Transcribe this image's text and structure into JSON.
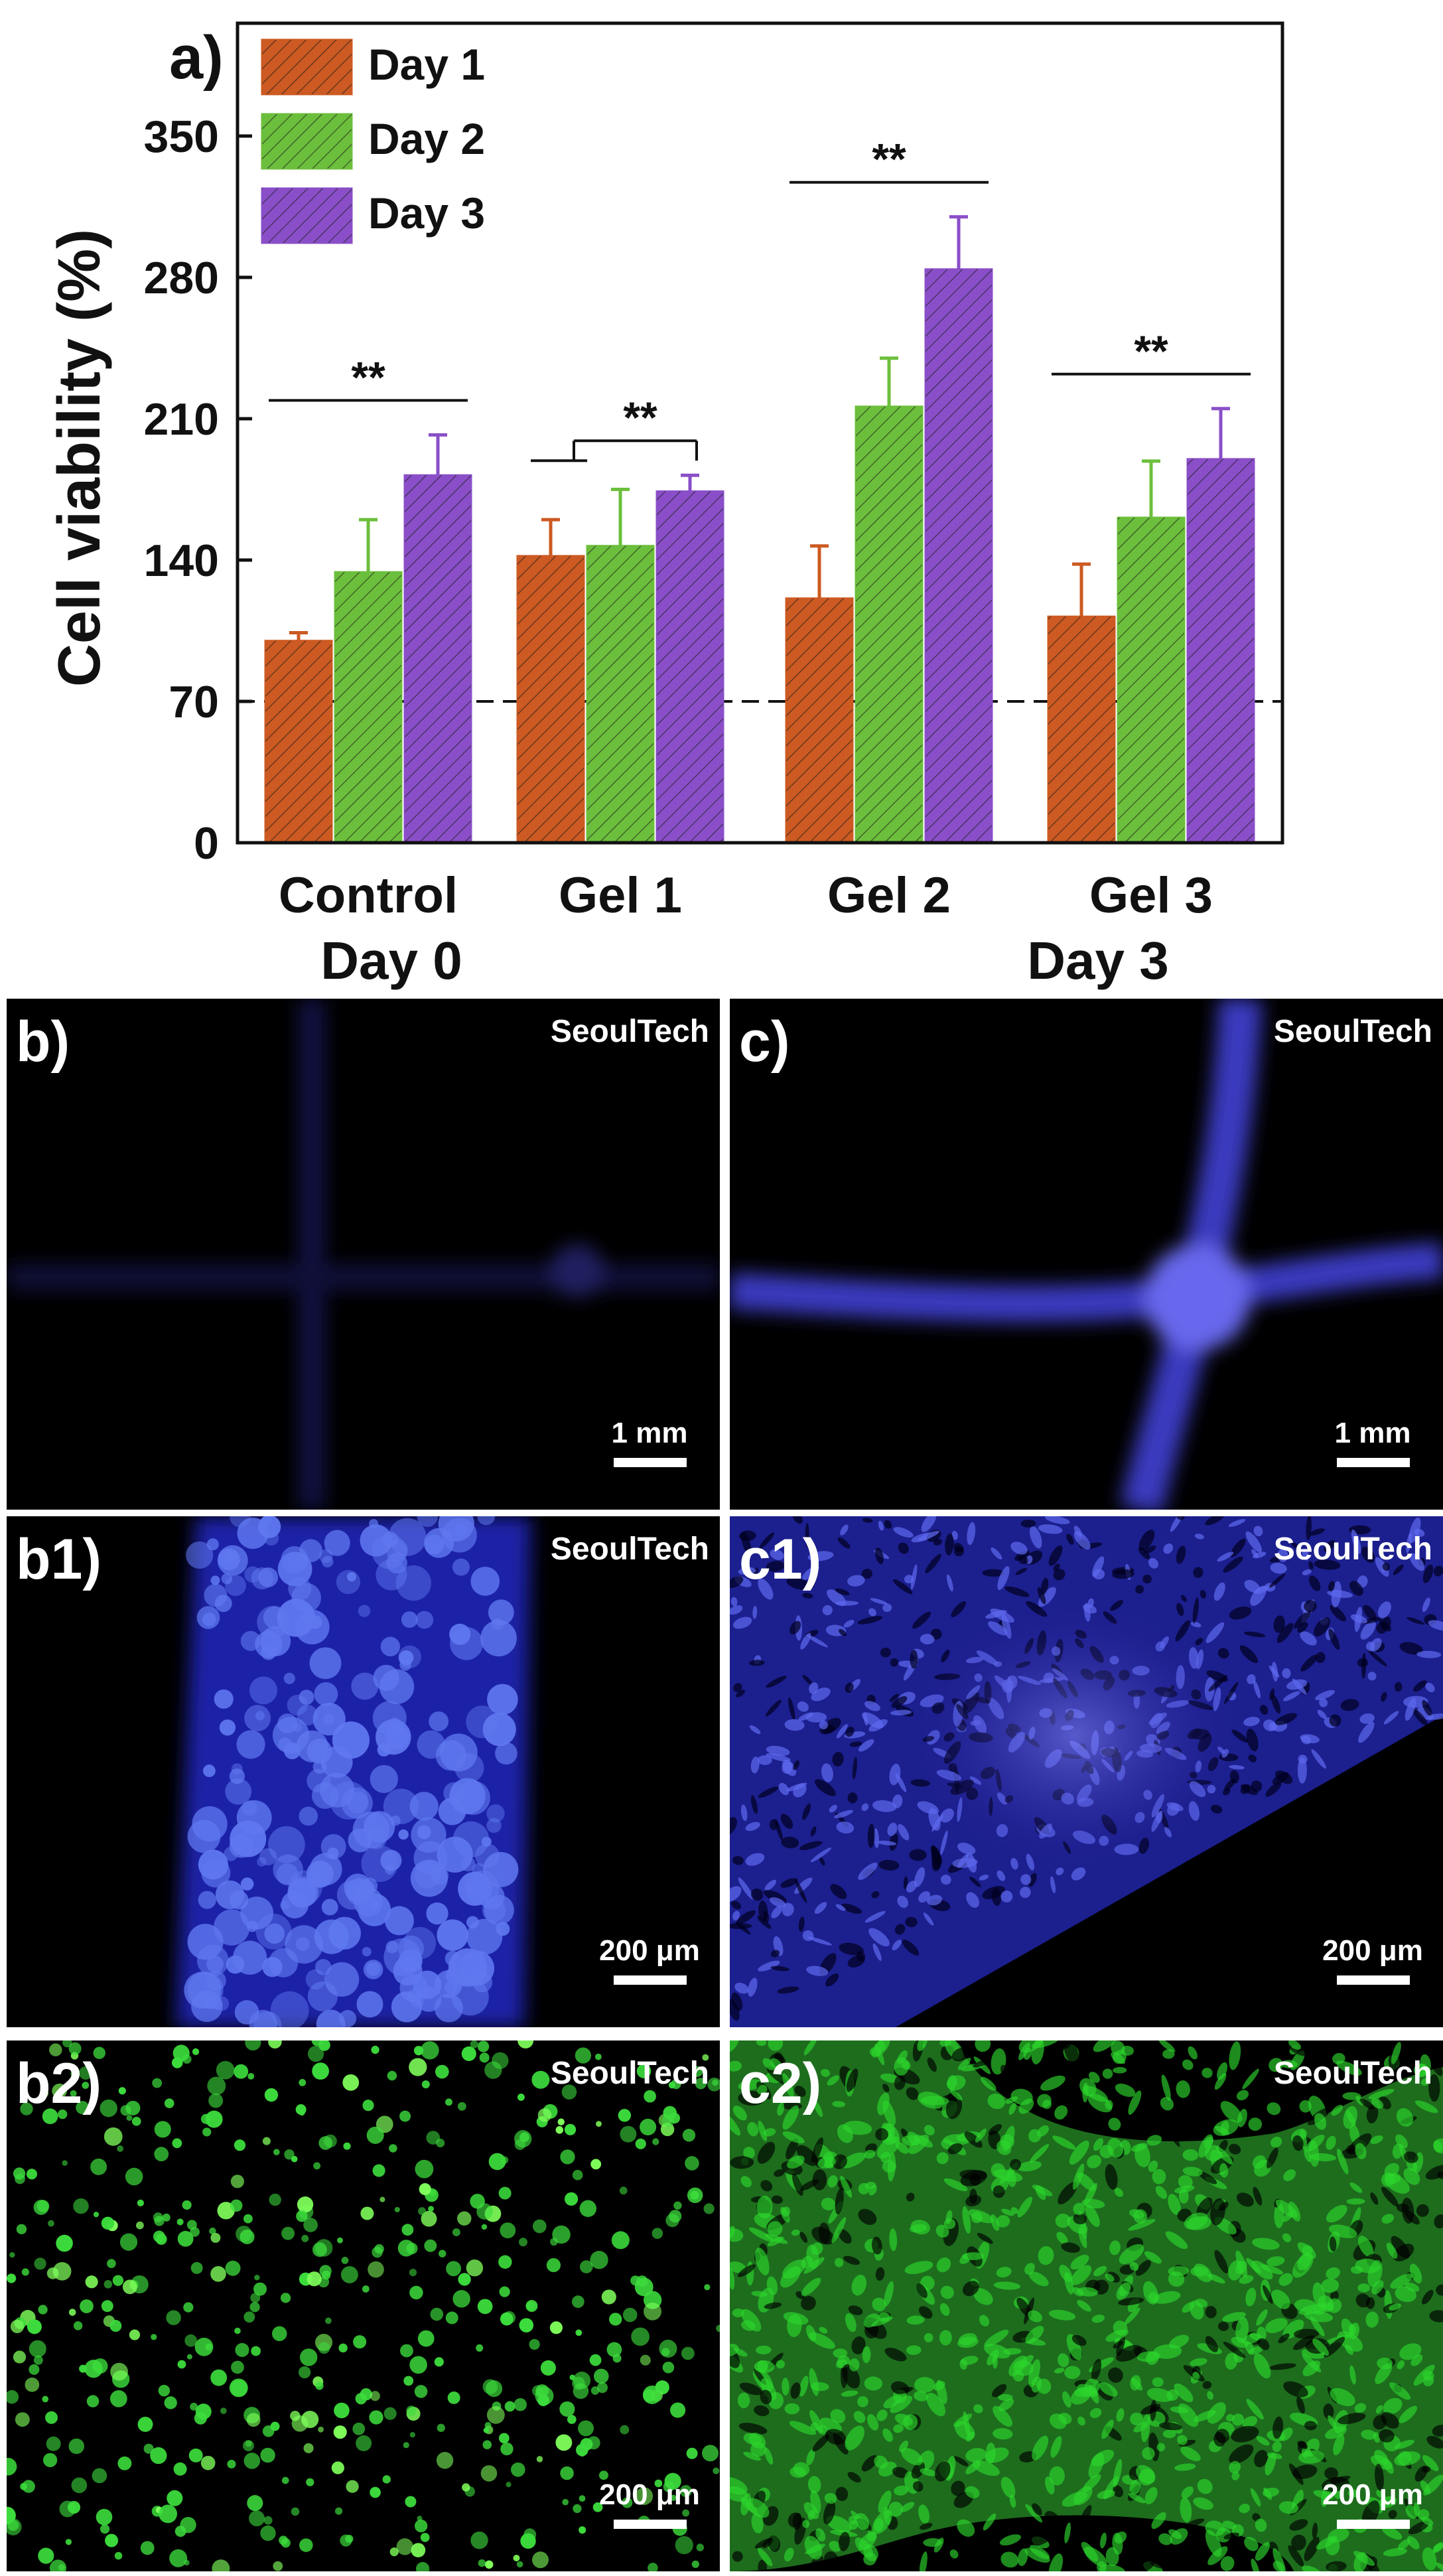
{
  "chart_data": {
    "type": "bar",
    "panel_label": "a)",
    "ylabel": "Cell viability (%)",
    "ylim": [
      0,
      350
    ],
    "yticks": [
      0,
      70,
      140,
      210,
      280,
      350
    ],
    "reference_line": 70,
    "categories": [
      "Control",
      "Gel 1",
      "Gel  2",
      "Gel 3"
    ],
    "series": [
      {
        "name": "Day 1",
        "color": "#cc5a22",
        "values": [
          100,
          142,
          121,
          112
        ],
        "errors": [
          4,
          18,
          26,
          26
        ]
      },
      {
        "name": "Day 2",
        "color": "#6cbf3c",
        "values": [
          134,
          147,
          216,
          161
        ],
        "errors": [
          26,
          28,
          24,
          28
        ]
      },
      {
        "name": "Day 3",
        "color": "#8a4fc8",
        "values": [
          182,
          174,
          284,
          190
        ],
        "errors": [
          20,
          8,
          26,
          25
        ]
      }
    ],
    "significance": [
      {
        "label": "**",
        "group": 0
      },
      {
        "label": "**",
        "group": 1
      },
      {
        "label": "**",
        "group": 2
      },
      {
        "label": "**",
        "group": 3
      }
    ],
    "bottom_labels": [
      "Day 0",
      "Day 3"
    ],
    "legend": "top-left"
  },
  "images": [
    {
      "id": "b",
      "label": "b)",
      "watermark": "SeoulTech",
      "scale": "1 mm",
      "stain": "blue-weak"
    },
    {
      "id": "c",
      "label": "c)",
      "watermark": "SeoulTech",
      "scale": "1 mm",
      "stain": "blue-cross"
    },
    {
      "id": "b1",
      "label": "b1)",
      "watermark": "SeoulTech",
      "scale": "200 μm",
      "stain": "blue-strand"
    },
    {
      "id": "c1",
      "label": "c1)",
      "watermark": "SeoulTech",
      "scale": "200 μm",
      "stain": "blue-sheet"
    },
    {
      "id": "b2",
      "label": "b2)",
      "watermark": "SeoulTech",
      "scale": "200 μm",
      "stain": "green-dots"
    },
    {
      "id": "c2",
      "label": "c2)",
      "watermark": "SeoulTech",
      "scale": "200 μm",
      "stain": "green-network"
    }
  ]
}
